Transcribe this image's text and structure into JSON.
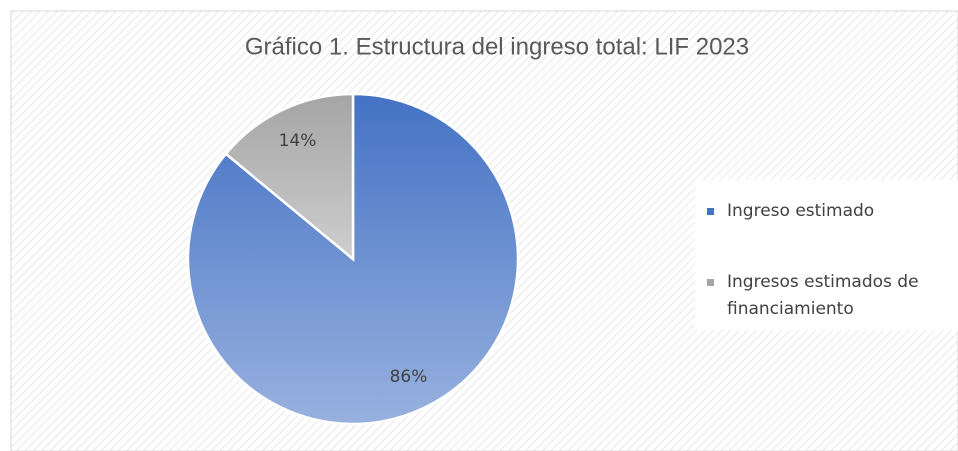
{
  "chart_data": {
    "type": "pie",
    "title": "Gráfico 1. Estructura del ingreso total: LIF 2023",
    "categories": [
      "Ingreso estimado",
      "Ingresos estimados de financiamiento"
    ],
    "values": [
      86,
      14
    ],
    "value_labels": [
      "86%",
      "14%"
    ],
    "colors": [
      "#4472c4",
      "#a5a5a5"
    ],
    "legend": "right"
  }
}
